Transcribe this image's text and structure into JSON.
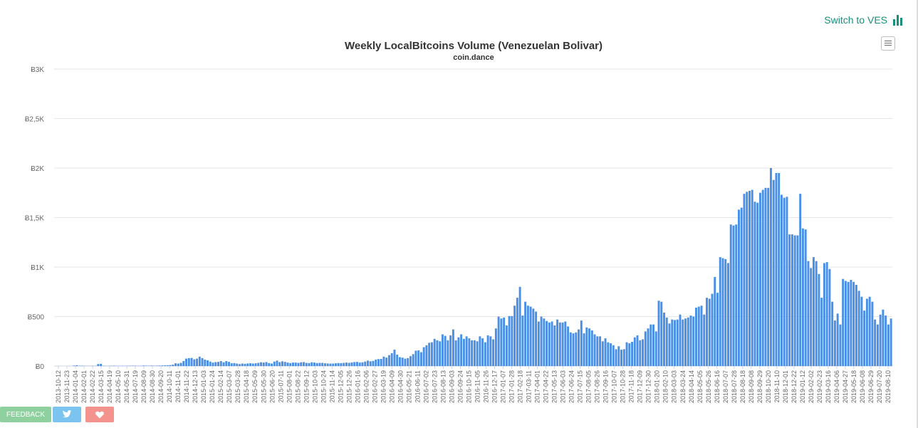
{
  "switch": {
    "label": "Switch to VES",
    "icon": "bar-chart-icon",
    "color": "#17917b"
  },
  "menu": {
    "icon": "hamburger-menu-icon"
  },
  "footer": {
    "feedback_label": "FEEDBACK",
    "twitter_icon": "twitter-icon",
    "heart_icon": "heart-icon",
    "colors": {
      "feedback": "#8fd19e",
      "twitter": "#7cc4f0",
      "heart": "#f4938d"
    }
  },
  "chart_data": {
    "type": "bar",
    "title": "Weekly LocalBitcoins Volume (Venezuelan Bolivar)",
    "subtitle": "coin.dance",
    "bar_color": "#4a8fe6",
    "ylim": [
      0,
      3000
    ],
    "y_ticks": [
      0,
      500,
      1000,
      1500,
      2000,
      2500,
      3000
    ],
    "y_tick_labels": [
      "Ƀ0",
      "Ƀ500",
      "Ƀ1K",
      "Ƀ1,5K",
      "Ƀ2K",
      "Ƀ2,5K",
      "Ƀ3K"
    ],
    "x_tick_labels": [
      "2013-10-12",
      "2013-11-23",
      "2014-01-04",
      "2014-02-01",
      "2014-02-22",
      "2014-03-15",
      "2014-04-19",
      "2014-05-10",
      "2014-05-31",
      "2014-07-19",
      "2014-08-09",
      "2014-08-30",
      "2014-09-20",
      "2014-10-11",
      "2014-11-01",
      "2014-11-22",
      "2014-12-13",
      "2015-01-03",
      "2015-01-24",
      "2015-02-14",
      "2015-03-07",
      "2015-03-28",
      "2015-04-18",
      "2015-05-09",
      "2015-05-30",
      "2015-06-20",
      "2015-07-11",
      "2015-08-01",
      "2015-08-22",
      "2015-09-12",
      "2015-10-03",
      "2015-10-24",
      "2015-11-14",
      "2015-12-05",
      "2015-12-26",
      "2016-01-16",
      "2016-02-06",
      "2016-02-27",
      "2016-03-19",
      "2016-04-09",
      "2016-04-30",
      "2016-05-21",
      "2016-06-11",
      "2016-07-02",
      "2016-07-23",
      "2016-08-13",
      "2016-09-03",
      "2016-09-24",
      "2016-10-15",
      "2016-11-05",
      "2016-11-26",
      "2016-12-17",
      "2017-01-07",
      "2017-01-28",
      "2017-02-18",
      "2017-03-11",
      "2017-04-01",
      "2017-04-22",
      "2017-05-13",
      "2017-06-03",
      "2017-06-24",
      "2017-07-15",
      "2017-08-05",
      "2017-08-26",
      "2017-09-16",
      "2017-10-07",
      "2017-10-28",
      "2017-11-18",
      "2017-12-09",
      "2017-12-30",
      "2018-01-20",
      "2018-02-10",
      "2018-03-03",
      "2018-03-24",
      "2018-04-14",
      "2018-05-05",
      "2018-05-26",
      "2018-06-16",
      "2018-07-07",
      "2018-07-28",
      "2018-08-18",
      "2018-09-08",
      "2018-09-29",
      "2018-10-20",
      "2018-11-10",
      "2018-12-01",
      "2018-12-22",
      "2019-01-12",
      "2019-02-02",
      "2019-02-23",
      "2019-03-16",
      "2019-04-06",
      "2019-04-27",
      "2019-05-18",
      "2019-06-08",
      "2019-06-29",
      "2019-07-20",
      "2019-08-10"
    ],
    "values": [
      0,
      0,
      0,
      0,
      0,
      0,
      0,
      5,
      8,
      3,
      4,
      2,
      2,
      1,
      3,
      2,
      20,
      22,
      3,
      2,
      2,
      3,
      4,
      2,
      2,
      3,
      2,
      3,
      3,
      4,
      3,
      2,
      3,
      5,
      4,
      3,
      5,
      3,
      4,
      5,
      6,
      7,
      8,
      10,
      14,
      28,
      25,
      32,
      50,
      75,
      80,
      82,
      68,
      75,
      95,
      80,
      65,
      58,
      45,
      35,
      40,
      42,
      50,
      38,
      50,
      42,
      28,
      30,
      25,
      20,
      25,
      22,
      26,
      28,
      25,
      28,
      32,
      38,
      35,
      40,
      30,
      25,
      45,
      55,
      40,
      48,
      42,
      35,
      30,
      35,
      35,
      32,
      38,
      40,
      32,
      30,
      38,
      35,
      30,
      32,
      32,
      28,
      26,
      25,
      25,
      28,
      30,
      30,
      32,
      35,
      32,
      36,
      40,
      42,
      35,
      38,
      45,
      55,
      48,
      52,
      65,
      70,
      72,
      95,
      85,
      110,
      130,
      165,
      115,
      90,
      85,
      75,
      80,
      100,
      120,
      155,
      158,
      140,
      190,
      210,
      235,
      240,
      275,
      260,
      250,
      320,
      305,
      260,
      310,
      370,
      260,
      290,
      320,
      275,
      300,
      280,
      260,
      260,
      250,
      300,
      280,
      240,
      310,
      300,
      270,
      380,
      500,
      480,
      490,
      410,
      505,
      505,
      610,
      690,
      800,
      510,
      650,
      610,
      600,
      580,
      550,
      450,
      500,
      480,
      455,
      440,
      450,
      410,
      470,
      440,
      440,
      450,
      400,
      340,
      330,
      340,
      370,
      460,
      330,
      390,
      380,
      360,
      320,
      300,
      300,
      250,
      280,
      240,
      230,
      210,
      170,
      200,
      165,
      170,
      240,
      230,
      245,
      290,
      310,
      260,
      270,
      350,
      380,
      420,
      420,
      350,
      660,
      650,
      540,
      490,
      430,
      470,
      465,
      470,
      520,
      470,
      480,
      490,
      510,
      500,
      590,
      600,
      610,
      520,
      690,
      680,
      730,
      900,
      740,
      1100,
      1090,
      1080,
      1040,
      1430,
      1420,
      1430,
      1580,
      1600,
      1740,
      1760,
      1770,
      1780,
      1660,
      1650,
      1750,
      1780,
      1800,
      1800,
      2000,
      1880,
      1950,
      1950,
      1730,
      1700,
      1710,
      1330,
      1330,
      1320,
      1320,
      1740,
      1390,
      1380,
      1060,
      990,
      1100,
      1060,
      930,
      690,
      1040,
      1050,
      980,
      650,
      460,
      530,
      420,
      880,
      860,
      850,
      870,
      850,
      820,
      760,
      700,
      560,
      680,
      700,
      650,
      470,
      420,
      520,
      570,
      510,
      420,
      480
    ]
  }
}
